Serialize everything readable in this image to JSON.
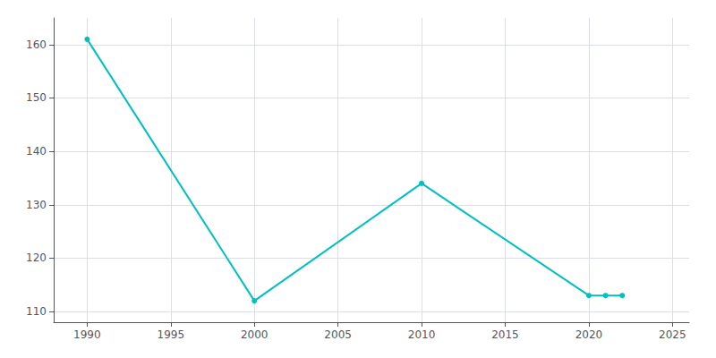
{
  "chart_data": {
    "type": "line",
    "x": [
      1990,
      2000,
      2010,
      2020,
      2021,
      2022
    ],
    "values": [
      161,
      112,
      134,
      113,
      113,
      113
    ],
    "color": "#00BFBF",
    "marker": "circle",
    "xlim": [
      1988,
      2026
    ],
    "xticks": [
      1990,
      1995,
      2000,
      2005,
      2010,
      2015,
      2020,
      2025
    ],
    "ylim": [
      108,
      165
    ],
    "yticks": [
      110,
      120,
      130,
      140,
      150,
      160
    ],
    "grid": true
  }
}
